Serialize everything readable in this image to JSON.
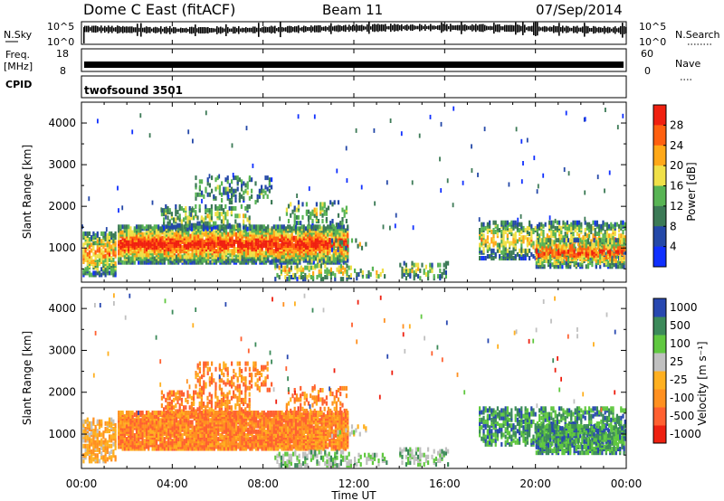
{
  "header": {
    "title": "Dome C East (fitACF)",
    "beam": "Beam 11",
    "date": "07/Sep/2014"
  },
  "left_labels": {
    "nsky": "N.Sky",
    "freq": "Freq.",
    "mhz": "[MHz]",
    "cpid": "CPID"
  },
  "right_labels": {
    "nsearch": "N.Search",
    "nave": "Nave"
  },
  "cpid_text": "twofsound 3501",
  "nsky_ticks": [
    "10^5",
    "10^0"
  ],
  "freq_ticks": [
    "18",
    "8"
  ],
  "nsearch_ticks": [
    "10^5",
    "10^0"
  ],
  "nave_ticks": [
    "60",
    "0"
  ],
  "colors": {
    "power_scale": [
      "#1030ff",
      "#2448a8",
      "#3c7a56",
      "#58b454",
      "#f0e048",
      "#ffa818",
      "#ff6010",
      "#f02010"
    ],
    "velocity_scale": [
      "#ee2010",
      "#ff6030",
      "#ff9020",
      "#ffb020",
      "#c0c0c0",
      "#60c840",
      "#3c8a5a",
      "#2848b0"
    ]
  },
  "chart_data": [
    {
      "type": "heatmap",
      "name": "power",
      "x_domain": [
        "00:00",
        "24:00"
      ],
      "y_domain_km": [
        180,
        4500
      ],
      "ylabel": "Slant Range [km]",
      "yticks": [
        "1000",
        "2000",
        "3000",
        "4000"
      ],
      "xticks": [
        "00:00",
        "04:00",
        "08:00",
        "12:00",
        "16:00",
        "20:00",
        "00:00"
      ],
      "colorbar_label": "Power [dB]",
      "colorbar_ticks": [
        "4",
        "8",
        "12",
        "16",
        "20",
        "24",
        "28"
      ],
      "colorbar_range": [
        0,
        32
      ]
    },
    {
      "type": "heatmap",
      "name": "velocity",
      "x_domain": [
        "00:00",
        "24:00"
      ],
      "y_domain_km": [
        180,
        4500
      ],
      "ylabel": "Slant Range [km]",
      "yticks": [
        "1000",
        "2000",
        "3000",
        "4000"
      ],
      "xticks": [
        "00:00",
        "04:00",
        "08:00",
        "12:00",
        "16:00",
        "20:00",
        "00:00"
      ],
      "xlabel": "Time UT",
      "colorbar_label": "Velocity [m s⁻¹]",
      "colorbar_ticks": [
        "-1000",
        "-500",
        "-100",
        "-25",
        "25",
        "100",
        "500",
        "1000"
      ]
    }
  ]
}
